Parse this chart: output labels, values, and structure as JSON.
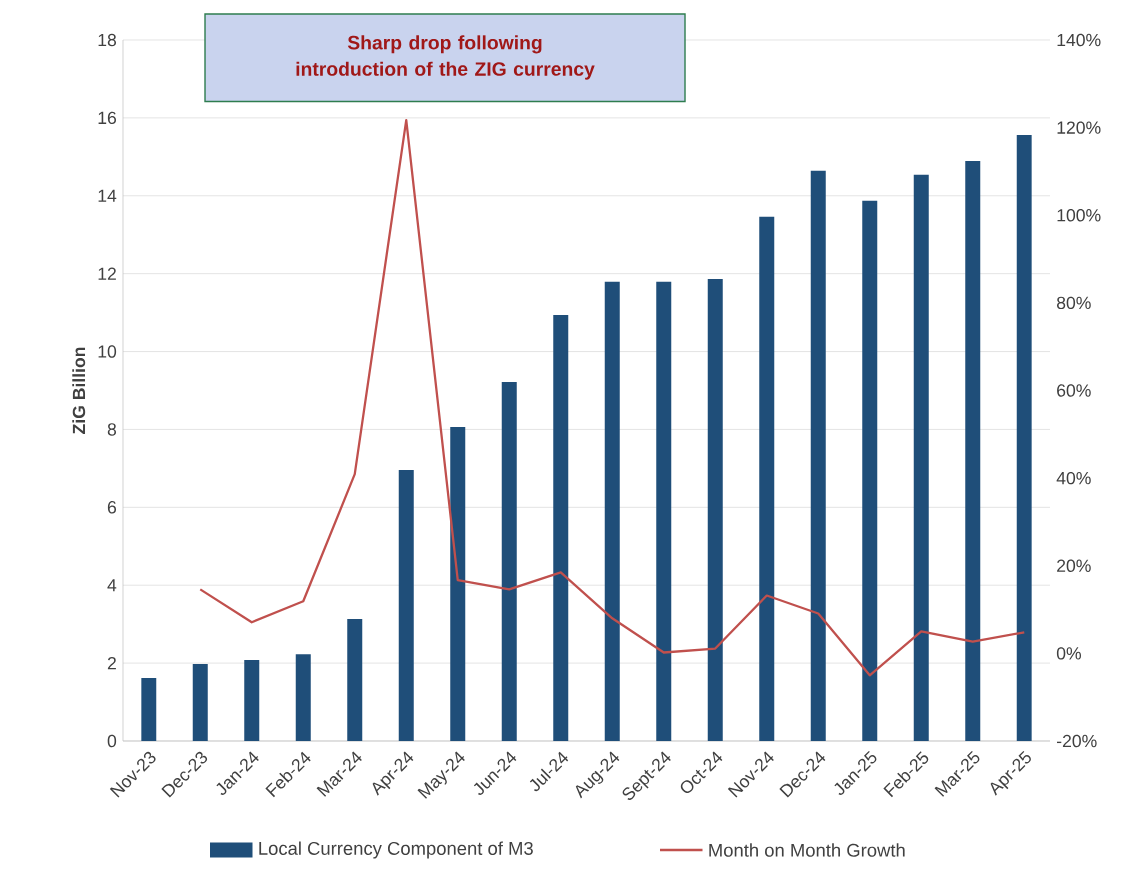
{
  "chart_data": {
    "type": "bar",
    "ylabel": "ZiG Billion",
    "categories": [
      "Nov-23",
      "Dec-23",
      "Jan-24",
      "Feb-24",
      "Mar-24",
      "Apr-24",
      "May-24",
      "Jun-24",
      "Jul-24",
      "Aug-24",
      "Sept-24",
      "Oct-24",
      "Nov-24",
      "Dec-24",
      "Jan-25",
      "Feb-25",
      "Mar-25",
      "Apr-25"
    ],
    "series": [
      {
        "name": "Local Currency Component of M3",
        "color": "#1f4e79",
        "values": [
          1.62,
          1.98,
          2.08,
          2.23,
          3.13,
          6.96,
          8.06,
          9.22,
          10.94,
          11.79,
          11.79,
          11.86,
          13.46,
          14.64,
          13.87,
          14.54,
          14.89,
          15.56
        ]
      },
      {
        "name": "Month on Month Growth",
        "type": "line",
        "axis": "y2",
        "color": "#c0504d",
        "values": [
          null,
          14.6,
          7.1,
          11.9,
          40.9,
          121.7,
          16.7,
          14.6,
          18.5,
          8.0,
          0.2,
          1.1,
          13.2,
          9.1,
          -5.0,
          5.0,
          2.7,
          4.8
        ]
      }
    ],
    "ylim": [
      0,
      18
    ],
    "yticks": [
      0,
      2,
      4,
      6,
      8,
      10,
      12,
      14,
      16,
      18
    ],
    "y2lim": [
      -20,
      140
    ],
    "y2ticks": [
      {
        "value": -20,
        "label": "-20%"
      },
      {
        "value": 0,
        "label": "0%"
      },
      {
        "value": 20,
        "label": "20%"
      },
      {
        "value": 40,
        "label": "40%"
      },
      {
        "value": 60,
        "label": "60%"
      },
      {
        "value": 80,
        "label": "80%"
      },
      {
        "value": 100,
        "label": "100%"
      },
      {
        "value": 120,
        "label": "120%"
      },
      {
        "value": 140,
        "label": "140%"
      }
    ],
    "grid": "y",
    "legend": "bottom",
    "annotations": [
      "Sharp drop following introduction of the ZIG currency"
    ]
  }
}
